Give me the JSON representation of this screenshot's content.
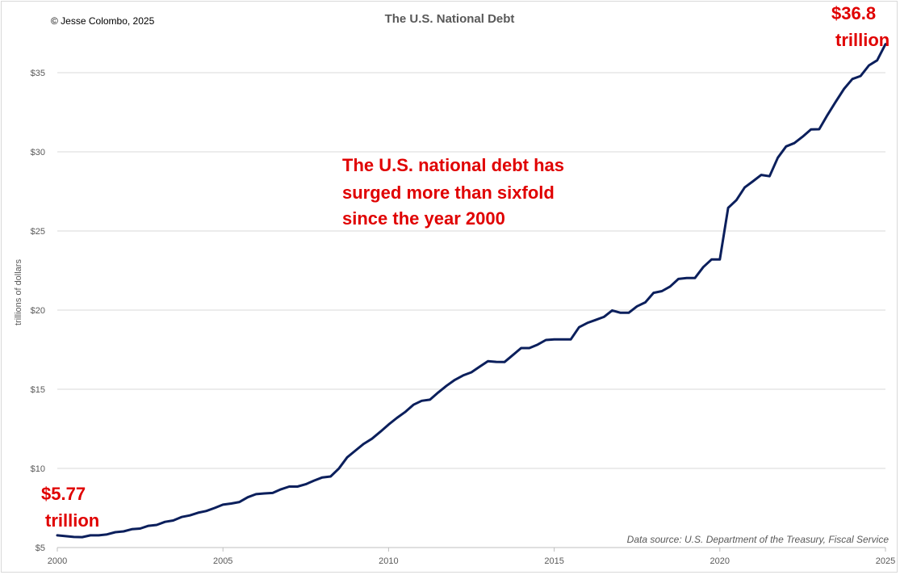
{
  "copyright": "© Jesse Colombo, 2025",
  "source_note": "Data source: U.S. Department of the Treasury, Fiscal Service",
  "annotations": {
    "main_line1": "The U.S. national debt has",
    "main_line2": "surged more than sixfold",
    "main_line3": "since the year 2000",
    "start_value": "$5.77",
    "start_unit": "trillion",
    "end_value": "$36.8",
    "end_unit": "trillion"
  },
  "colors": {
    "line": "#0b1f5c",
    "annotation": "#e00000",
    "grid": "#d9d9d9"
  },
  "chart_data": {
    "type": "line",
    "title": "The U.S. National Debt",
    "xlabel": "",
    "ylabel": "trillions of dollars",
    "xlim": [
      2000,
      2025
    ],
    "ylim": [
      5,
      36.5
    ],
    "y_ticks": [
      5,
      10,
      15,
      20,
      25,
      30,
      35
    ],
    "y_tick_labels": [
      "$5",
      "$10",
      "$15",
      "$20",
      "$25",
      "$30",
      "$35"
    ],
    "x_ticks": [
      2000,
      2005,
      2010,
      2015,
      2020,
      2025
    ],
    "x_tick_labels": [
      "2000",
      "2005",
      "2010",
      "2015",
      "2020",
      "2025"
    ],
    "grid": "horizontal",
    "series": [
      {
        "x": [
          2000.0,
          2000.25,
          2000.5,
          2000.75,
          2001.0,
          2001.25,
          2001.5,
          2001.75,
          2002.0,
          2002.25,
          2002.5,
          2002.75,
          2003.0,
          2003.25,
          2003.5,
          2003.75,
          2004.0,
          2004.25,
          2004.5,
          2004.75,
          2005.0,
          2005.25,
          2005.5,
          2005.75,
          2006.0,
          2006.25,
          2006.5,
          2006.75,
          2007.0,
          2007.25,
          2007.5,
          2007.75,
          2008.0,
          2008.25,
          2008.5,
          2008.75,
          2009.0,
          2009.25,
          2009.5,
          2009.75,
          2010.0,
          2010.25,
          2010.5,
          2010.75,
          2011.0,
          2011.25,
          2011.5,
          2011.75,
          2012.0,
          2012.25,
          2012.5,
          2012.75,
          2013.0,
          2013.25,
          2013.5,
          2013.75,
          2014.0,
          2014.25,
          2014.5,
          2014.75,
          2015.0,
          2015.25,
          2015.5,
          2015.75,
          2016.0,
          2016.25,
          2016.5,
          2016.75,
          2017.0,
          2017.25,
          2017.5,
          2017.75,
          2018.0,
          2018.25,
          2018.5,
          2018.75,
          2019.0,
          2019.25,
          2019.5,
          2019.75,
          2020.0,
          2020.25,
          2020.5,
          2020.75,
          2021.0,
          2021.25,
          2021.5,
          2021.75,
          2022.0,
          2022.25,
          2022.5,
          2022.75,
          2023.0,
          2023.25,
          2023.5,
          2023.75,
          2024.0,
          2024.25,
          2024.5,
          2024.75,
          2025.0
        ],
        "values": [
          5.77,
          5.72,
          5.67,
          5.66,
          5.77,
          5.77,
          5.83,
          5.97,
          6.02,
          6.16,
          6.2,
          6.37,
          6.43,
          6.62,
          6.71,
          6.93,
          7.03,
          7.2,
          7.31,
          7.5,
          7.71,
          7.78,
          7.88,
          8.18,
          8.37,
          8.42,
          8.45,
          8.68,
          8.85,
          8.85,
          9.0,
          9.23,
          9.43,
          9.49,
          9.99,
          10.7,
          11.13,
          11.55,
          11.88,
          12.31,
          12.77,
          13.19,
          13.56,
          14.02,
          14.27,
          14.34,
          14.8,
          15.22,
          15.59,
          15.87,
          16.07,
          16.43,
          16.77,
          16.73,
          16.72,
          17.16,
          17.6,
          17.6,
          17.82,
          18.11,
          18.15,
          18.15,
          18.15,
          18.92,
          19.19,
          19.38,
          19.57,
          19.98,
          19.83,
          19.83,
          20.24,
          20.49,
          21.09,
          21.2,
          21.49,
          21.97,
          22.03,
          22.03,
          22.72,
          23.2,
          23.2,
          26.46,
          26.95,
          27.75,
          28.14,
          28.54,
          28.46,
          29.63,
          30.34,
          30.55,
          30.96,
          31.42,
          31.43,
          32.33,
          33.17,
          33.98,
          34.6,
          34.79,
          35.46,
          35.78,
          36.8
        ]
      }
    ]
  }
}
